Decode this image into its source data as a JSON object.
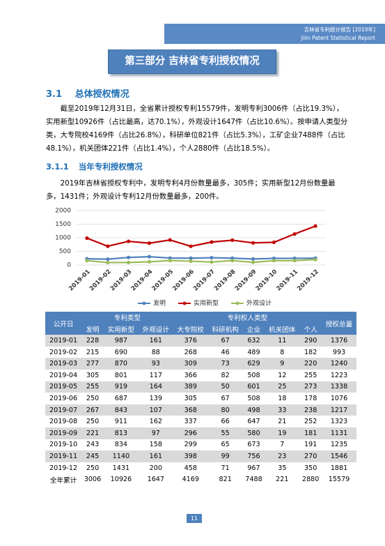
{
  "header": {
    "title": "吉林省专利统计报告  [2019年]",
    "subtitle": "Jilin Patent Statistical Report"
  },
  "part_title": "第三部分  吉林省专利授权情况",
  "section": {
    "number": "3.1",
    "title": "总体授权情况",
    "paragraph": "截至2019年12月31日，全省累计授权专利15579件，发明专利3006件（占比19.3%），实用新型10926件（占比最高，达70.1%），外观设计1647件（占比10.6%）。按申请人类型分类，大专院校4169件（占比26.8%），科研单位821件（占比5.3%），工矿企业7488件（占比48.1%），机关团体221件（占比1.4%），个人2880件（占比18.5%）。"
  },
  "subsection": {
    "number": "3.1.1",
    "title": "当年专利授权情况",
    "paragraph": "2019年吉林省授权专利中，发明专利4月份数量最多，305件；实用新型12月份数量最多，1431件；外观设计专利12月份数量最多，200件。"
  },
  "chart_data": {
    "type": "line",
    "categories": [
      "2019-01",
      "2019-02",
      "2019-03",
      "2019-04",
      "2019-05",
      "2019-06",
      "2019-07",
      "2019-08",
      "2019-09",
      "2019-10",
      "2019-11",
      "2019-12"
    ],
    "series": [
      {
        "name": "发明",
        "color": "#4f81bd",
        "values": [
          228,
          215,
          277,
          305,
          255,
          250,
          267,
          250,
          221,
          243,
          245,
          250
        ]
      },
      {
        "name": "实用新型",
        "color": "#c00000",
        "values": [
          987,
          690,
          870,
          801,
          919,
          687,
          843,
          911,
          813,
          834,
          1140,
          1431
        ]
      },
      {
        "name": "外观设计",
        "color": "#9bbb59",
        "values": [
          161,
          88,
          93,
          117,
          164,
          139,
          107,
          162,
          97,
          158,
          161,
          200
        ]
      }
    ],
    "ylim": [
      0,
      2000
    ],
    "yticks": [
      0,
      500,
      1000,
      1500,
      2000
    ],
    "grid": true,
    "legend": "bottom"
  },
  "table": {
    "date_header": "公开日",
    "type_group": "专利类型",
    "owner_group": "专利权人类型",
    "total_header": "授权总量",
    "type_columns": [
      "发明",
      "实用新型",
      "外观设计"
    ],
    "owner_columns": [
      "大专院校",
      "科研机构",
      "企业",
      "机关团体",
      "个人"
    ],
    "rows": [
      [
        "2019-01",
        228,
        987,
        161,
        376,
        67,
        632,
        11,
        290,
        1376
      ],
      [
        "2019-02",
        215,
        690,
        88,
        268,
        46,
        489,
        8,
        182,
        993
      ],
      [
        "2019-03",
        277,
        870,
        93,
        309,
        73,
        629,
        9,
        220,
        1240
      ],
      [
        "2019-04",
        305,
        801,
        117,
        366,
        82,
        508,
        12,
        255,
        1223
      ],
      [
        "2019-05",
        255,
        919,
        164,
        389,
        50,
        601,
        25,
        273,
        1338
      ],
      [
        "2019-06",
        250,
        687,
        139,
        305,
        67,
        508,
        18,
        178,
        1076
      ],
      [
        "2019-07",
        267,
        843,
        107,
        368,
        80,
        498,
        33,
        238,
        1217
      ],
      [
        "2019-08",
        250,
        911,
        162,
        337,
        66,
        647,
        21,
        252,
        1323
      ],
      [
        "2019-09",
        221,
        813,
        97,
        296,
        55,
        580,
        19,
        181,
        1131
      ],
      [
        "2019-10",
        243,
        834,
        158,
        299,
        65,
        673,
        7,
        191,
        1235
      ],
      [
        "2019-11",
        245,
        1140,
        161,
        398,
        99,
        756,
        23,
        270,
        1546
      ],
      [
        "2019-12",
        250,
        1431,
        200,
        458,
        71,
        967,
        35,
        350,
        1881
      ],
      [
        "全年累计",
        3006,
        10926,
        1647,
        4169,
        821,
        7488,
        221,
        2880,
        15579
      ]
    ]
  },
  "page_number": "11"
}
